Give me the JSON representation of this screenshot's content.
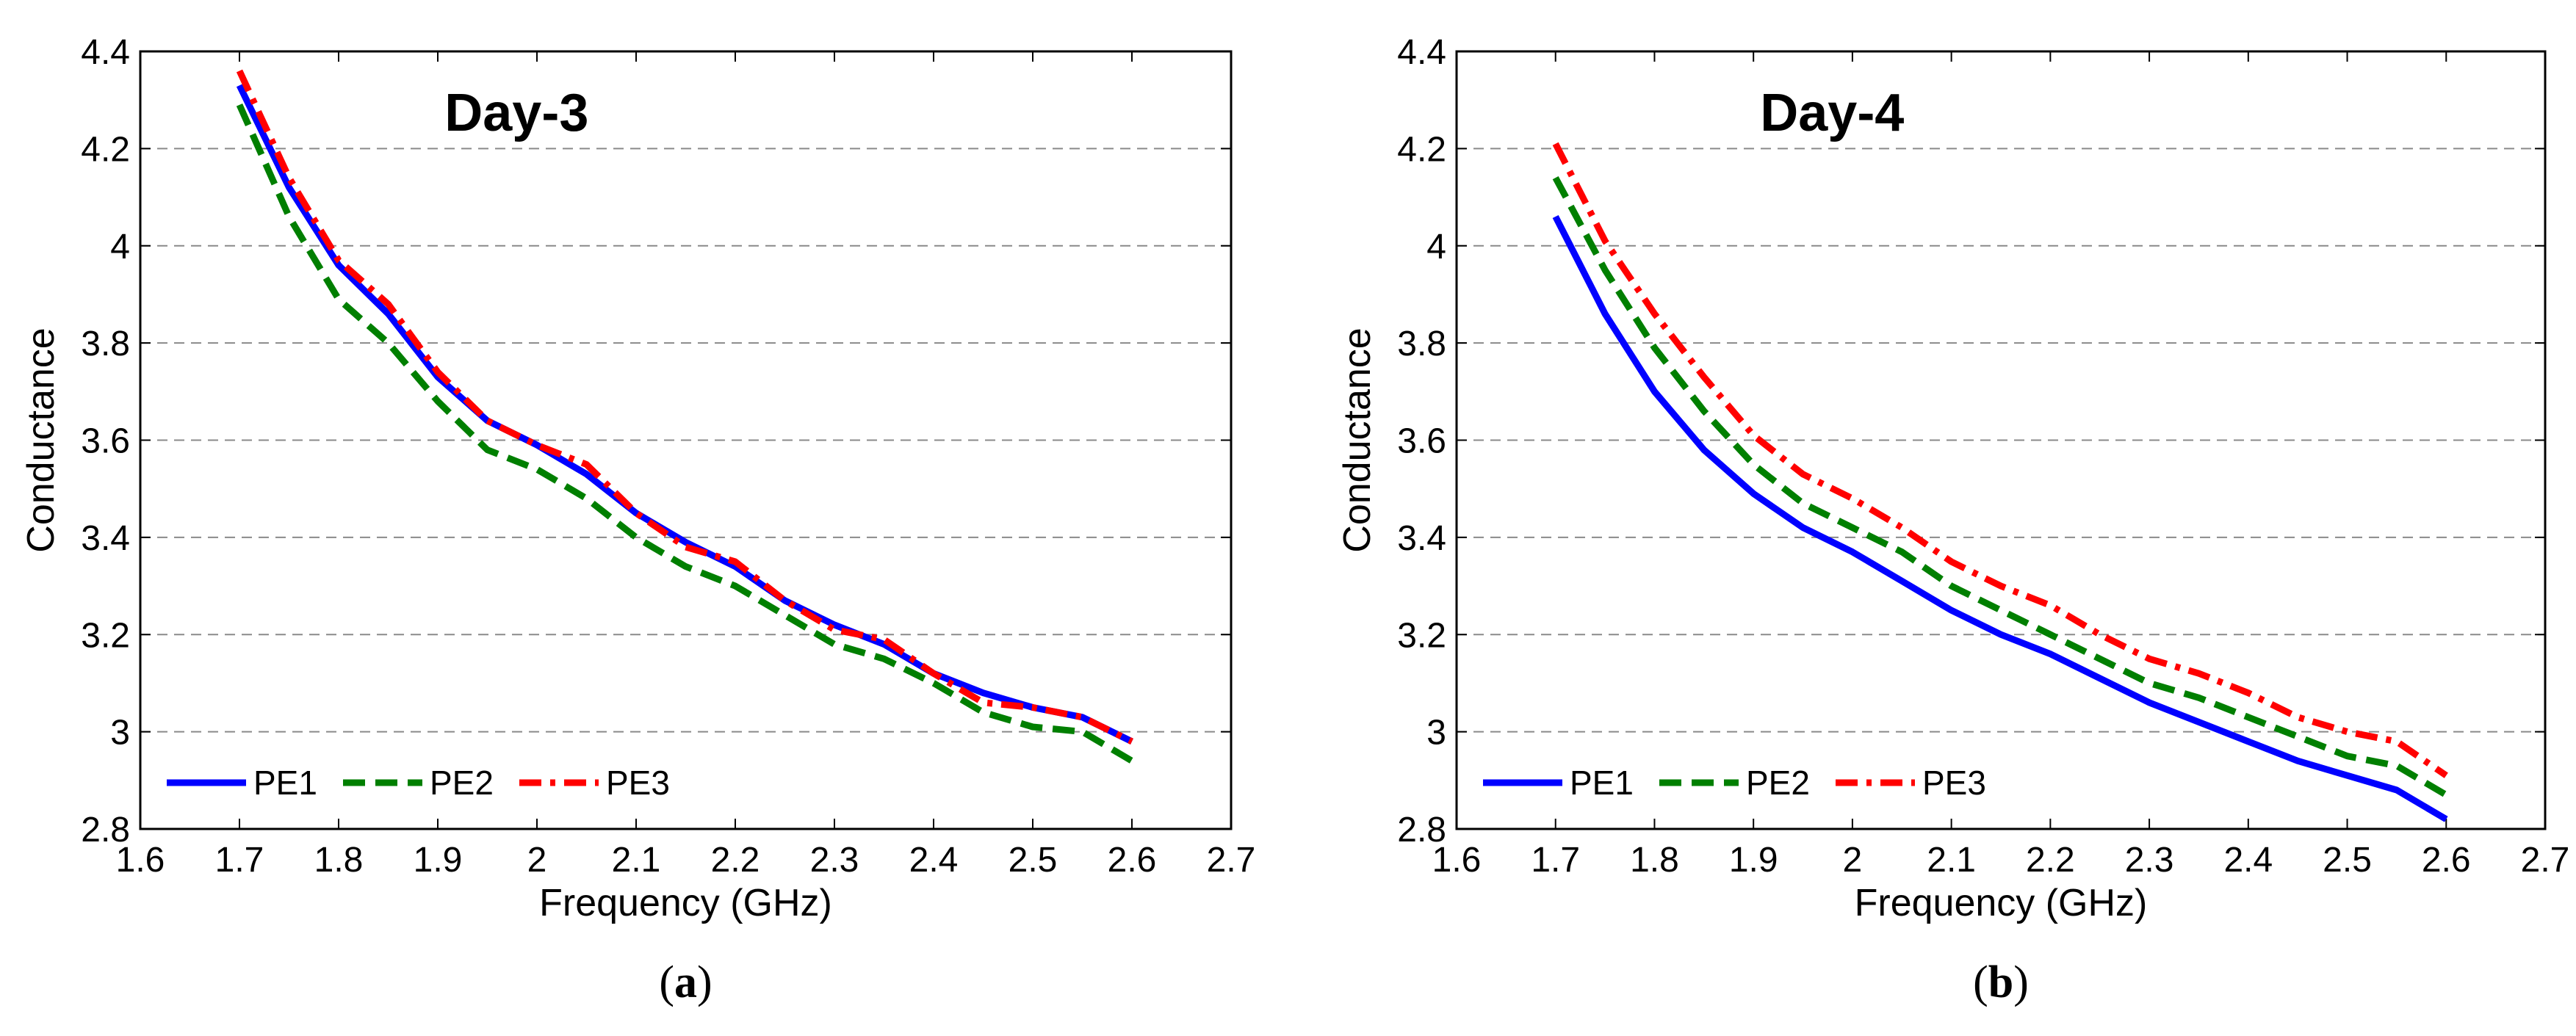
{
  "chart_data": [
    {
      "type": "line",
      "title": "Day-3",
      "caption": "a",
      "xlabel": "Frequency (GHz)",
      "ylabel": "Conductance",
      "xlim": [
        1.6,
        2.7
      ],
      "ylim": [
        2.8,
        4.4
      ],
      "xticks": [
        1.6,
        1.7,
        1.8,
        1.9,
        2.0,
        2.1,
        2.2,
        2.3,
        2.4,
        2.5,
        2.6,
        2.7
      ],
      "xtick_labels": [
        "1.6",
        "1.7",
        "1.8",
        "1.9",
        "2",
        "2.1",
        "2.2",
        "2.3",
        "2.4",
        "2.5",
        "2.6",
        "2.7"
      ],
      "yticks": [
        2.8,
        3.0,
        3.2,
        3.4,
        3.6,
        3.8,
        4.0,
        4.2,
        4.4
      ],
      "ytick_labels": [
        "2.8",
        "3",
        "3.2",
        "3.4",
        "3.6",
        "3.8",
        "4",
        "4.2",
        "4.4"
      ],
      "grid": "horizontal-dashed",
      "legend_position": "bottom-left",
      "x": [
        1.7,
        1.75,
        1.8,
        1.85,
        1.9,
        1.95,
        2.0,
        2.05,
        2.1,
        2.15,
        2.2,
        2.25,
        2.3,
        2.35,
        2.4,
        2.45,
        2.5,
        2.55,
        2.6
      ],
      "series": [
        {
          "name": "PE1",
          "color": "#0000ff",
          "style": "solid",
          "values": [
            4.33,
            4.12,
            3.96,
            3.86,
            3.73,
            3.64,
            3.59,
            3.53,
            3.45,
            3.39,
            3.34,
            3.27,
            3.22,
            3.18,
            3.12,
            3.08,
            3.05,
            3.03,
            2.98
          ]
        },
        {
          "name": "PE2",
          "color": "#007f00",
          "style": "dashed",
          "values": [
            4.29,
            4.06,
            3.89,
            3.8,
            3.68,
            3.58,
            3.54,
            3.48,
            3.4,
            3.34,
            3.3,
            3.24,
            3.18,
            3.15,
            3.1,
            3.04,
            3.01,
            3.0,
            2.94
          ]
        },
        {
          "name": "PE3",
          "color": "#ff0000",
          "style": "dashdot",
          "values": [
            4.36,
            4.14,
            3.97,
            3.88,
            3.74,
            3.64,
            3.59,
            3.55,
            3.45,
            3.38,
            3.35,
            3.27,
            3.21,
            3.19,
            3.12,
            3.06,
            3.05,
            3.03,
            2.98
          ]
        }
      ]
    },
    {
      "type": "line",
      "title": "Day-4",
      "caption": "b",
      "xlabel": "Frequency (GHz)",
      "ylabel": "Conductance",
      "xlim": [
        1.6,
        2.7
      ],
      "ylim": [
        2.8,
        4.4
      ],
      "xticks": [
        1.6,
        1.7,
        1.8,
        1.9,
        2.0,
        2.1,
        2.2,
        2.3,
        2.4,
        2.5,
        2.6,
        2.7
      ],
      "xtick_labels": [
        "1.6",
        "1.7",
        "1.8",
        "1.9",
        "2",
        "2.1",
        "2.2",
        "2.3",
        "2.4",
        "2.5",
        "2.6",
        "2.7"
      ],
      "yticks": [
        2.8,
        3.0,
        3.2,
        3.4,
        3.6,
        3.8,
        4.0,
        4.2,
        4.4
      ],
      "ytick_labels": [
        "2.8",
        "3",
        "3.2",
        "3.4",
        "3.6",
        "3.8",
        "4",
        "4.2",
        "4.4"
      ],
      "grid": "horizontal-dashed",
      "legend_position": "bottom-left",
      "x": [
        1.7,
        1.75,
        1.8,
        1.85,
        1.9,
        1.95,
        2.0,
        2.05,
        2.1,
        2.15,
        2.2,
        2.25,
        2.3,
        2.35,
        2.4,
        2.45,
        2.5,
        2.55,
        2.6
      ],
      "series": [
        {
          "name": "PE1",
          "color": "#0000ff",
          "style": "solid",
          "values": [
            4.06,
            3.86,
            3.7,
            3.58,
            3.49,
            3.42,
            3.37,
            3.31,
            3.25,
            3.2,
            3.16,
            3.11,
            3.06,
            3.02,
            2.98,
            2.94,
            2.91,
            2.88,
            2.82
          ]
        },
        {
          "name": "PE2",
          "color": "#007f00",
          "style": "dashed",
          "values": [
            4.14,
            3.95,
            3.79,
            3.66,
            3.55,
            3.47,
            3.42,
            3.37,
            3.3,
            3.25,
            3.2,
            3.15,
            3.1,
            3.07,
            3.03,
            2.99,
            2.95,
            2.93,
            2.87
          ]
        },
        {
          "name": "PE3",
          "color": "#ff0000",
          "style": "dashdot",
          "values": [
            4.21,
            4.01,
            3.86,
            3.73,
            3.61,
            3.53,
            3.48,
            3.42,
            3.35,
            3.3,
            3.26,
            3.2,
            3.15,
            3.12,
            3.08,
            3.03,
            3.0,
            2.98,
            2.91
          ]
        }
      ]
    }
  ]
}
